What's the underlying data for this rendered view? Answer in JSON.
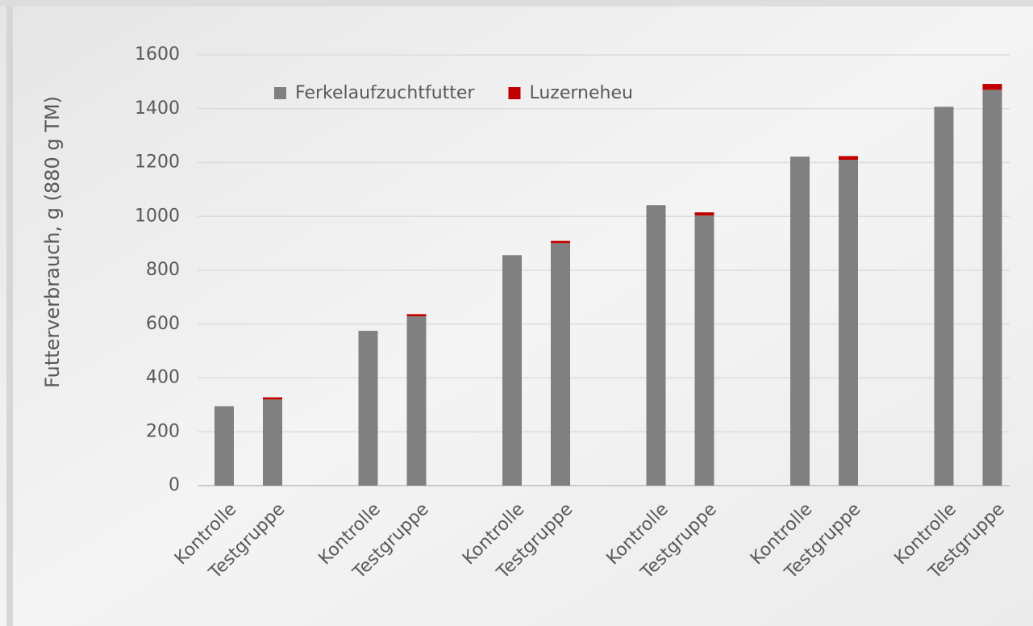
{
  "chart_data": {
    "type": "stacked_bar",
    "y_label": "Futterverbrauch, g  (880 g TM)",
    "categories": [
      "Kontrolle",
      "Testgruppe",
      "Kontrolle",
      "Testgruppe",
      "Kontrolle",
      "Testgruppe",
      "Kontrolle",
      "Testgruppe",
      "Kontrolle",
      "Testgruppe",
      "Kontrolle",
      "Testgruppe"
    ],
    "series": [
      {
        "name": "Ferkelaufzuchtfutter",
        "color": "#808080",
        "values": [
          295,
          320,
          575,
          629,
          856,
          901,
          1042,
          1003,
          1222,
          1210,
          1407,
          1470
        ]
      },
      {
        "name": "Luzerneheu",
        "color": "#c00000",
        "values": [
          0,
          8,
          0,
          8,
          0,
          8,
          0,
          12,
          0,
          14,
          0,
          22
        ]
      }
    ],
    "ylim": [
      0,
      1600
    ],
    "yticks": [
      0,
      200,
      400,
      600,
      800,
      1000,
      1200,
      1400,
      1600
    ],
    "grid": true,
    "legend": "top"
  }
}
